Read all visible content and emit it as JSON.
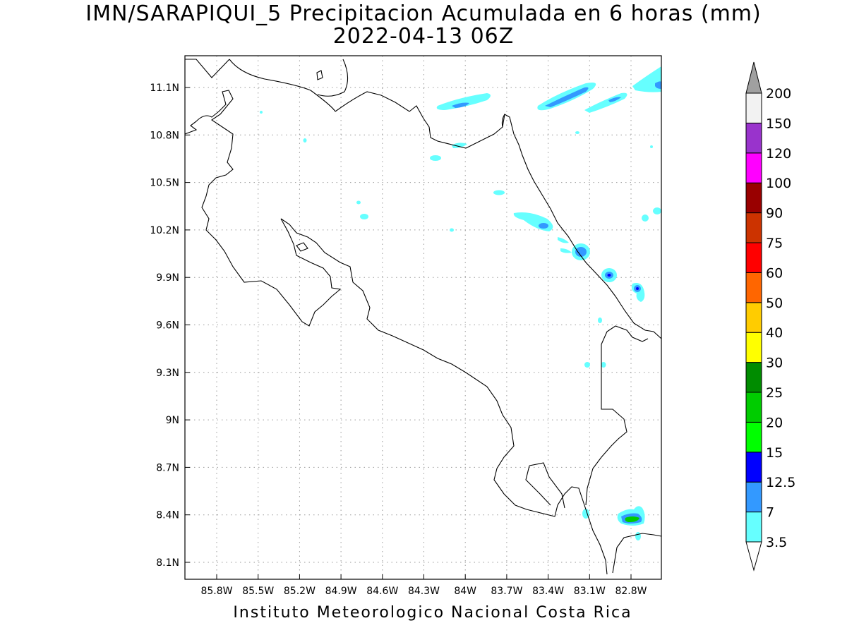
{
  "title": {
    "line1": "IMN/SARAPIQUI_5 Precipitacion Acumulada en 6 horas (mm)",
    "line2": "2022-04-13 06Z"
  },
  "footer": "Instituto Meteorologico Nacional Costa Rica",
  "axes": {
    "x_ticks": [
      "85.8W",
      "85.5W",
      "85.2W",
      "84.9W",
      "84.6W",
      "84.3W",
      "84W",
      "83.7W",
      "83.4W",
      "83.1W",
      "82.8W"
    ],
    "y_ticks": [
      "11.1N",
      "10.8N",
      "10.5N",
      "10.2N",
      "9.9N",
      "9.6N",
      "9.3N",
      "9N",
      "8.7N",
      "8.4N",
      "8.1N"
    ],
    "grid": true
  },
  "colorbar": {
    "levels": [
      "3.5",
      "7",
      "12.5",
      "15",
      "20",
      "25",
      "30",
      "40",
      "50",
      "60",
      "75",
      "90",
      "100",
      "120",
      "150",
      "200"
    ],
    "colors": [
      "#66ffff",
      "#3399ff",
      "#0000ff",
      "#00ff00",
      "#00cc00",
      "#008c00",
      "#ffff00",
      "#ffcc00",
      "#ff6600",
      "#ff0000",
      "#cc3300",
      "#990000",
      "#ff00ff",
      "#9933cc",
      "#f2f2f2",
      "#a0a0a0"
    ],
    "extends": "both"
  },
  "palette": {
    "coast": "#000000",
    "light": "#66ffff",
    "mid": "#3399ff",
    "strong": "#0000ff",
    "heavy": "#00cc00"
  }
}
